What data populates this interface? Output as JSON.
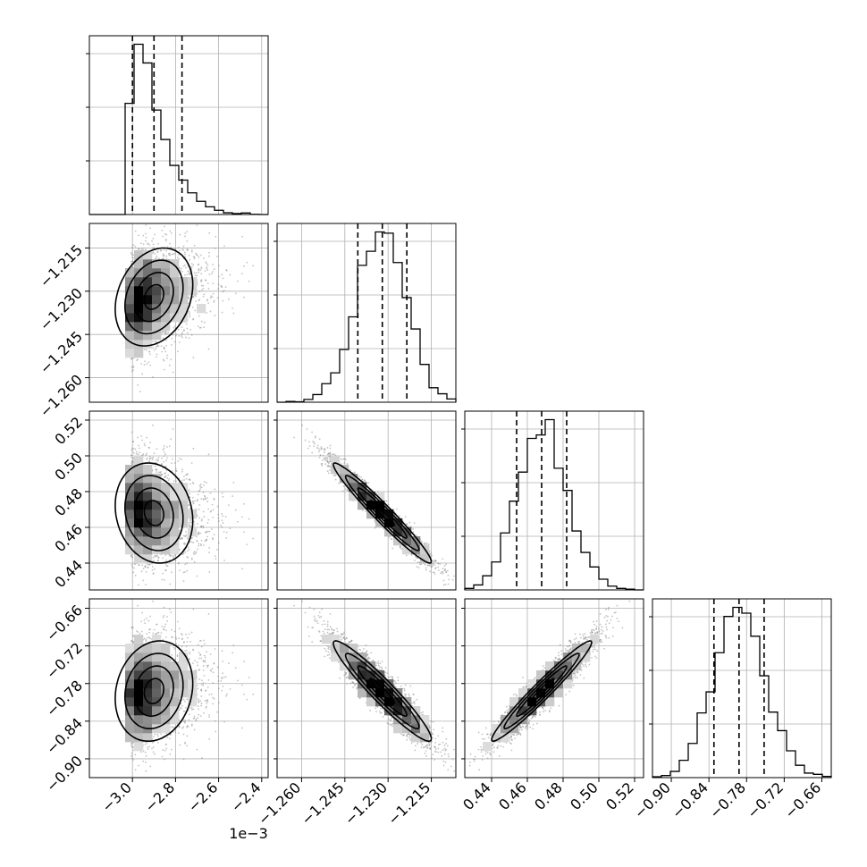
{
  "chart_data": {
    "type": "corner",
    "grid_lines": true,
    "offset_text": "1e−3",
    "parameters": [
      {
        "range": [
          -3.2,
          -2.37
        ],
        "ticks": [
          -3.0,
          -2.8,
          -2.6,
          -2.4
        ],
        "tick_labels": [
          "−3.0",
          "−2.8",
          "−2.6",
          "−2.4"
        ],
        "quantiles": [
          -3.0,
          -2.9,
          -2.77
        ],
        "mean": -2.9,
        "sd": 0.09,
        "skew": 0.8
      },
      {
        "range": [
          -1.2685,
          -1.2065
        ],
        "ticks": [
          -1.26,
          -1.245,
          -1.23,
          -1.215
        ],
        "tick_labels": [
          "−1.260",
          "−1.245",
          "−1.230",
          "−1.215"
        ],
        "quantiles": [
          -1.2405,
          -1.232,
          -1.2235
        ],
        "mean": -1.232,
        "sd": 0.0085,
        "skew": 0
      },
      {
        "range": [
          0.425,
          0.525
        ],
        "ticks": [
          0.44,
          0.46,
          0.48,
          0.5,
          0.52
        ],
        "tick_labels": [
          "0.44",
          "0.46",
          "0.48",
          "0.50",
          "0.52"
        ],
        "quantiles": [
          0.454,
          0.468,
          0.482
        ],
        "mean": 0.468,
        "sd": 0.014,
        "skew": 0
      },
      {
        "range": [
          -0.93,
          -0.645
        ],
        "ticks": [
          -0.9,
          -0.84,
          -0.78,
          -0.72,
          -0.66
        ],
        "tick_labels": [
          "−0.90",
          "−0.84",
          "−0.78",
          "−0.72",
          "−0.66"
        ],
        "quantiles": [
          -0.832,
          -0.792,
          -0.752
        ],
        "mean": -0.792,
        "sd": 0.04,
        "skew": 0
      }
    ],
    "correlations": [
      [
        1.0,
        0.25,
        -0.15,
        0.15
      ],
      [
        0.25,
        1.0,
        -0.97,
        -0.95
      ],
      [
        -0.15,
        -0.97,
        1.0,
        0.97
      ],
      [
        0.15,
        -0.95,
        0.97,
        1.0
      ]
    ]
  }
}
